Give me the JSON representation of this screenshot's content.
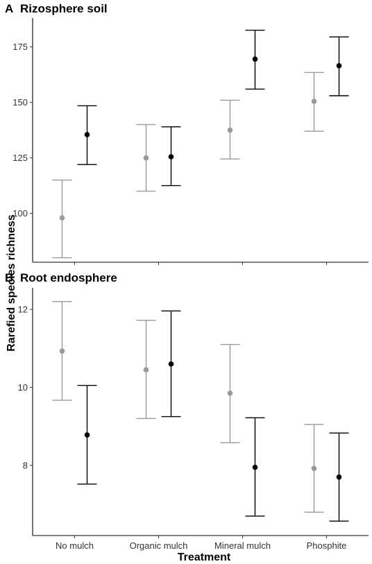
{
  "chart_data": [
    {
      "type": "scatter",
      "panel_letter": "A",
      "title": "Rizosphere soil",
      "categories": [
        "No mulch",
        "Organic mulch",
        "Mineral mulch",
        "Phosphite"
      ],
      "yticks": [
        100,
        125,
        150,
        175
      ],
      "ylim": [
        78,
        188
      ],
      "grid": false,
      "series": [
        {
          "color": "#999999",
          "values": [
            98,
            125,
            137.5,
            150.5
          ],
          "lower": [
            80,
            110,
            124.5,
            137
          ],
          "upper": [
            115,
            140,
            151,
            163.5
          ]
        },
        {
          "color": "#000000",
          "values": [
            135.5,
            125.5,
            169.5,
            166.5
          ],
          "lower": [
            122,
            112.5,
            156,
            153
          ],
          "upper": [
            148.5,
            139,
            182.5,
            179.5
          ]
        }
      ]
    },
    {
      "type": "scatter",
      "panel_letter": "B",
      "title": "Root endosphere",
      "categories": [
        "No mulch",
        "Organic mulch",
        "Mineral mulch",
        "Phosphite"
      ],
      "yticks": [
        8,
        10,
        12
      ],
      "ylim": [
        6.2,
        12.55
      ],
      "grid": false,
      "series": [
        {
          "color": "#999999",
          "values": [
            10.93,
            10.45,
            9.85,
            7.92
          ],
          "lower": [
            9.67,
            9.2,
            8.58,
            6.8
          ],
          "upper": [
            12.2,
            11.72,
            11.1,
            9.05
          ]
        },
        {
          "color": "#000000",
          "values": [
            8.78,
            10.6,
            7.95,
            7.7
          ],
          "lower": [
            7.52,
            9.25,
            6.7,
            6.57
          ],
          "upper": [
            10.05,
            11.96,
            9.22,
            8.83
          ]
        }
      ]
    }
  ],
  "axes": {
    "ylabel": "Rarefied species richness",
    "xlabel": "Treatment"
  }
}
